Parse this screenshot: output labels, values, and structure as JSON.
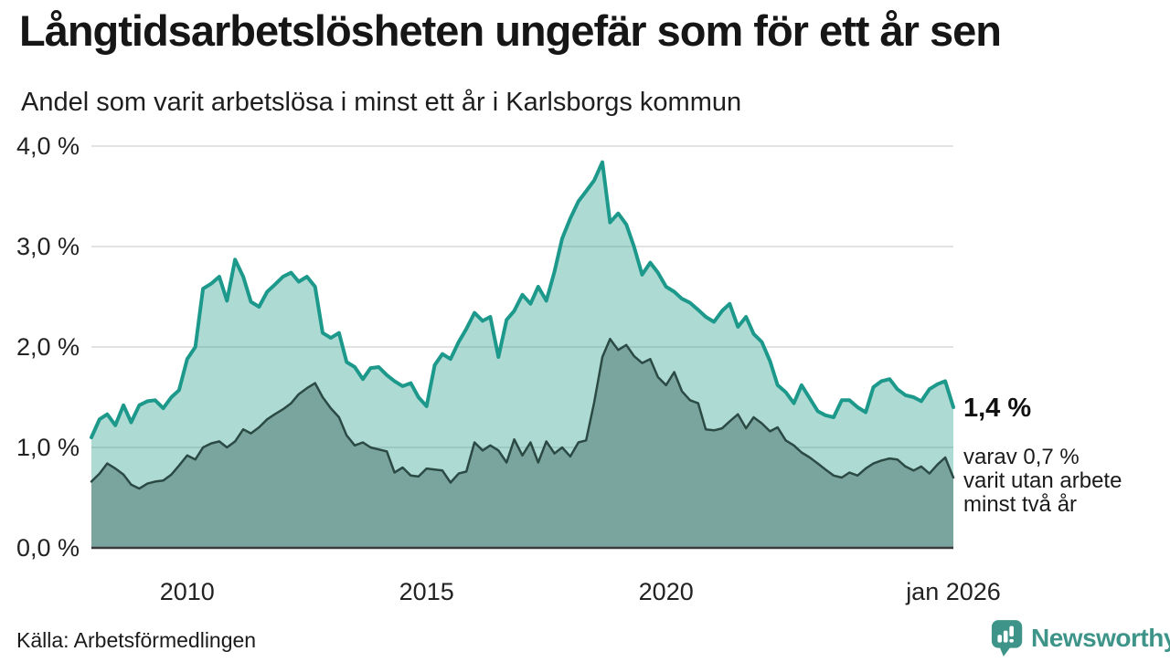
{
  "header": {
    "title": "Långtidsarbetslösheten ungefär som för ett år sen",
    "subtitle": "Andel som varit arbetslösa i minst ett år i Karlsborgs kommun"
  },
  "annotation": {
    "value_label": "1,4 %",
    "detail_lines": [
      "varav 0,7 %",
      "varit utan arbete",
      "minst två år"
    ]
  },
  "footer": {
    "source": "Källa: Arbetsförmedlingen",
    "logo_text": "Newsworthy",
    "logo_color": "#3e9488"
  },
  "chart_data": {
    "type": "area",
    "title": "Långtidsarbetslösheten ungefär som för ett år sen",
    "subtitle": "Andel som varit arbetslösa i minst ett år i Karlsborgs kommun",
    "x_unit": "decimal year (samples every 2 months)",
    "xlim": [
      2008.0,
      2026.0
    ],
    "ylim": [
      0,
      4.0
    ],
    "grid": true,
    "legend_position": "none",
    "grid_color": "#d9d9d9",
    "axis_color": "#3a3a3a",
    "tick_color": "#222222",
    "xticks": [
      {
        "value": 2010,
        "label": "2010"
      },
      {
        "value": 2015,
        "label": "2015"
      },
      {
        "value": 2020,
        "label": "2020"
      },
      {
        "value": 2026.0,
        "label": "jan 2026"
      }
    ],
    "yticks": [
      {
        "value": 0,
        "label": "0,0 %"
      },
      {
        "value": 1,
        "label": "1,0 %"
      },
      {
        "value": 2,
        "label": "2,0 %"
      },
      {
        "value": 3,
        "label": "3,0 %"
      },
      {
        "value": 4,
        "label": "4,0 %"
      }
    ],
    "x": [
      2008.0,
      2008.17,
      2008.33,
      2008.5,
      2008.67,
      2008.83,
      2009.0,
      2009.17,
      2009.33,
      2009.5,
      2009.67,
      2009.83,
      2010.0,
      2010.17,
      2010.33,
      2010.5,
      2010.67,
      2010.83,
      2011.0,
      2011.17,
      2011.33,
      2011.5,
      2011.67,
      2011.83,
      2012.0,
      2012.17,
      2012.33,
      2012.5,
      2012.67,
      2012.83,
      2013.0,
      2013.17,
      2013.33,
      2013.5,
      2013.67,
      2013.83,
      2014.0,
      2014.17,
      2014.33,
      2014.5,
      2014.67,
      2014.83,
      2015.0,
      2015.17,
      2015.33,
      2015.5,
      2015.67,
      2015.83,
      2016.0,
      2016.17,
      2016.33,
      2016.5,
      2016.67,
      2016.83,
      2017.0,
      2017.17,
      2017.33,
      2017.5,
      2017.67,
      2017.83,
      2018.0,
      2018.17,
      2018.33,
      2018.5,
      2018.67,
      2018.83,
      2019.0,
      2019.17,
      2019.33,
      2019.5,
      2019.67,
      2019.83,
      2020.0,
      2020.17,
      2020.33,
      2020.5,
      2020.67,
      2020.83,
      2021.0,
      2021.17,
      2021.33,
      2021.5,
      2021.67,
      2021.83,
      2022.0,
      2022.17,
      2022.33,
      2022.5,
      2022.67,
      2022.83,
      2023.0,
      2023.17,
      2023.33,
      2023.5,
      2023.67,
      2023.83,
      2024.0,
      2024.17,
      2024.33,
      2024.5,
      2024.67,
      2024.83,
      2025.0,
      2025.17,
      2025.33,
      2025.5,
      2025.67,
      2025.83,
      2026.0
    ],
    "series": [
      {
        "id": "minst-ett-ar",
        "name": "Andel arbetslösa minst ett år",
        "line_color": "#1d998c",
        "line_width": 4,
        "fill_color": "rgba(42,157,143,0.38)",
        "values": [
          1.1,
          1.28,
          1.33,
          1.22,
          1.42,
          1.25,
          1.42,
          1.46,
          1.47,
          1.39,
          1.5,
          1.57,
          1.88,
          2.0,
          2.58,
          2.63,
          2.7,
          2.46,
          2.87,
          2.7,
          2.45,
          2.4,
          2.55,
          2.62,
          2.7,
          2.74,
          2.65,
          2.7,
          2.6,
          2.14,
          2.09,
          2.14,
          1.85,
          1.8,
          1.68,
          1.79,
          1.8,
          1.72,
          1.66,
          1.61,
          1.64,
          1.5,
          1.41,
          1.82,
          1.93,
          1.88,
          2.05,
          2.18,
          2.34,
          2.26,
          2.3,
          1.9,
          2.27,
          2.36,
          2.52,
          2.43,
          2.6,
          2.46,
          2.75,
          3.08,
          3.28,
          3.45,
          3.55,
          3.66,
          3.84,
          3.24,
          3.33,
          3.22,
          3.0,
          2.72,
          2.84,
          2.74,
          2.6,
          2.55,
          2.48,
          2.44,
          2.37,
          2.3,
          2.25,
          2.36,
          2.43,
          2.2,
          2.3,
          2.13,
          2.05,
          1.86,
          1.62,
          1.55,
          1.44,
          1.62,
          1.49,
          1.36,
          1.32,
          1.3,
          1.47,
          1.47,
          1.4,
          1.35,
          1.6,
          1.66,
          1.68,
          1.58,
          1.52,
          1.5,
          1.46,
          1.58,
          1.63,
          1.66,
          1.4
        ]
      },
      {
        "id": "minst-tva-ar",
        "name": "varav arbetslösa minst två år",
        "line_color": "#2b4a44",
        "line_width": 2.5,
        "fill_color": "#7aa59e",
        "values": [
          0.66,
          0.74,
          0.84,
          0.79,
          0.73,
          0.63,
          0.59,
          0.64,
          0.66,
          0.67,
          0.73,
          0.82,
          0.92,
          0.88,
          1.0,
          1.04,
          1.06,
          1.0,
          1.06,
          1.18,
          1.14,
          1.2,
          1.28,
          1.33,
          1.38,
          1.44,
          1.53,
          1.59,
          1.64,
          1.5,
          1.39,
          1.3,
          1.12,
          1.02,
          1.05,
          1.0,
          0.98,
          0.96,
          0.75,
          0.8,
          0.72,
          0.71,
          0.79,
          0.78,
          0.77,
          0.65,
          0.74,
          0.76,
          1.05,
          0.97,
          1.02,
          0.97,
          0.85,
          1.08,
          0.92,
          1.05,
          0.85,
          1.06,
          0.94,
          1.0,
          0.91,
          1.05,
          1.07,
          1.45,
          1.9,
          2.08,
          1.97,
          2.02,
          1.91,
          1.84,
          1.88,
          1.7,
          1.62,
          1.75,
          1.56,
          1.47,
          1.44,
          1.18,
          1.17,
          1.19,
          1.26,
          1.33,
          1.19,
          1.3,
          1.24,
          1.16,
          1.2,
          1.07,
          1.02,
          0.95,
          0.9,
          0.84,
          0.78,
          0.72,
          0.7,
          0.75,
          0.72,
          0.79,
          0.84,
          0.87,
          0.89,
          0.88,
          0.81,
          0.77,
          0.81,
          0.74,
          0.83,
          0.9,
          0.7
        ]
      }
    ],
    "end_labels": {
      "latest_period": "jan 2026",
      "minst_ett_ar_latest": "1,4 %",
      "minst_tva_ar_latest": "0,7 %"
    }
  }
}
